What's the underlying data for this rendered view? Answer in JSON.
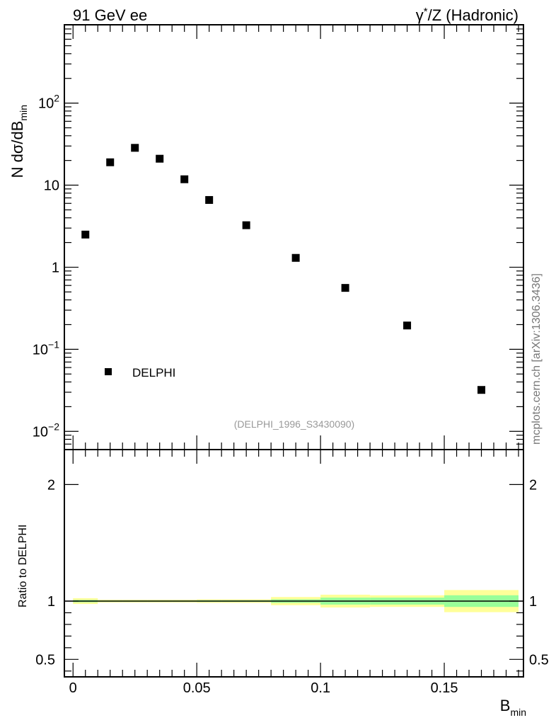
{
  "header": {
    "left": "91 GeV ee",
    "right_gamma": "γ",
    "right_star": "*",
    "right_rest": "/Z (Hadronic)"
  },
  "side_label": "mcplots.cern.ch [arXiv:1306.3436]",
  "chart_data": [
    {
      "type": "scatter",
      "panel": "main",
      "ylabel_main": "N dσ/dB",
      "ylabel_sub": "min",
      "yscale": "log",
      "ylim": [
        0.006,
        900
      ],
      "xlim": [
        -0.0035,
        0.182
      ],
      "yticks": [
        {
          "value": 0.01,
          "base": "10",
          "exp": "−2"
        },
        {
          "value": 0.1,
          "base": "10",
          "exp": "−1"
        },
        {
          "value": 1,
          "base": "1",
          "exp": ""
        },
        {
          "value": 10,
          "base": "10",
          "exp": ""
        },
        {
          "value": 100,
          "base": "10",
          "exp": "2"
        }
      ],
      "series": [
        {
          "name": "DELPHI",
          "marker": "square",
          "color": "#000000",
          "x": [
            0.005,
            0.015,
            0.025,
            0.035,
            0.045,
            0.055,
            0.07,
            0.09,
            0.11,
            0.135,
            0.165
          ],
          "y": [
            2.5,
            19.0,
            28.5,
            21.0,
            11.8,
            6.6,
            3.25,
            1.3,
            0.56,
            0.195,
            0.032
          ]
        }
      ],
      "legend": {
        "placement": "bottom-left",
        "entries": [
          "DELPHI"
        ]
      },
      "annotation": "(DELPHI_1996_S3430090)"
    },
    {
      "type": "area",
      "panel": "ratio",
      "ylabel": "Ratio to DELPHI",
      "ylim": [
        0.35,
        2.3
      ],
      "xlim": [
        -0.0035,
        0.182
      ],
      "yticks": [
        "0.5",
        "1",
        "2"
      ],
      "yticks_values": [
        0.5,
        1,
        2
      ],
      "xlabel_main": "B",
      "xlabel_sub": "min",
      "xticks": [
        "0",
        "0.05",
        "0.1",
        "0.15"
      ],
      "xticks_values": [
        0,
        0.05,
        0.1,
        0.15
      ],
      "reference_line": 1,
      "bands": [
        {
          "x0": 0.0,
          "x1": 0.01,
          "stat": [
            0.99,
            1.01
          ],
          "total": [
            0.975,
            1.025
          ]
        },
        {
          "x0": 0.01,
          "x1": 0.02,
          "stat": [
            0.995,
            1.005
          ],
          "total": [
            0.988,
            1.012
          ]
        },
        {
          "x0": 0.02,
          "x1": 0.03,
          "stat": [
            0.995,
            1.005
          ],
          "total": [
            0.988,
            1.012
          ]
        },
        {
          "x0": 0.03,
          "x1": 0.04,
          "stat": [
            0.995,
            1.005
          ],
          "total": [
            0.988,
            1.012
          ]
        },
        {
          "x0": 0.04,
          "x1": 0.05,
          "stat": [
            0.995,
            1.005
          ],
          "total": [
            0.988,
            1.012
          ]
        },
        {
          "x0": 0.05,
          "x1": 0.06,
          "stat": [
            0.993,
            1.007
          ],
          "total": [
            0.985,
            1.015
          ]
        },
        {
          "x0": 0.06,
          "x1": 0.08,
          "stat": [
            0.993,
            1.007
          ],
          "total": [
            0.985,
            1.015
          ]
        },
        {
          "x0": 0.08,
          "x1": 0.1,
          "stat": [
            0.985,
            1.015
          ],
          "total": [
            0.965,
            1.035
          ]
        },
        {
          "x0": 0.1,
          "x1": 0.12,
          "stat": [
            0.97,
            1.03
          ],
          "total": [
            0.945,
            1.055
          ]
        },
        {
          "x0": 0.12,
          "x1": 0.15,
          "stat": [
            0.97,
            1.03
          ],
          "total": [
            0.95,
            1.05
          ]
        },
        {
          "x0": 0.15,
          "x1": 0.18,
          "stat": [
            0.95,
            1.05
          ],
          "total": [
            0.905,
            1.095
          ]
        }
      ],
      "colors": {
        "stat": "#99ff99",
        "total": "#ffff99",
        "line": "#000000"
      }
    }
  ]
}
